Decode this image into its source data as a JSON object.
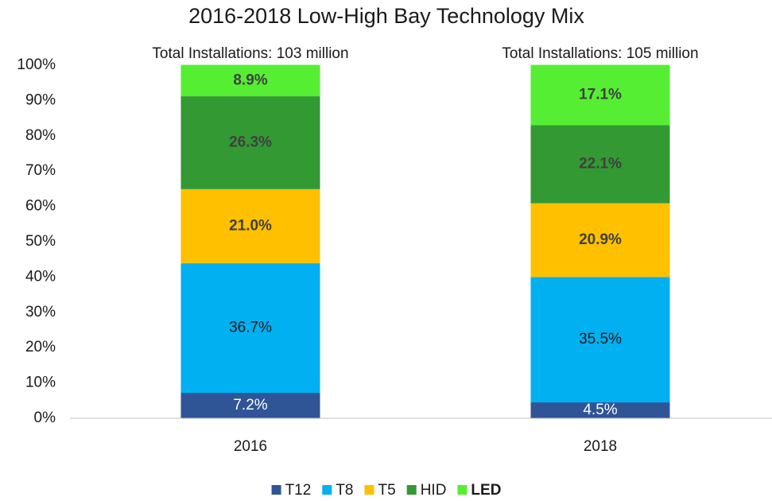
{
  "chart_data": {
    "type": "stacked_bar",
    "title": "2016-2018 Low-High Bay Technology Mix",
    "annotations": [
      "Total Installations: 103 million",
      "Total Installations: 105 million"
    ],
    "categories": [
      "2016",
      "2018"
    ],
    "series": [
      {
        "name": "T12",
        "color": "#2f5597",
        "label_color": "#ffffff",
        "label_bold": false,
        "values": [
          7.2,
          4.5
        ],
        "value_labels": [
          "7.2%",
          "4.5%"
        ]
      },
      {
        "name": "T8",
        "color": "#00b0f0",
        "label_color": "#1a1a1a",
        "label_bold": false,
        "values": [
          36.7,
          35.5
        ],
        "value_labels": [
          "36.7%",
          "35.5%"
        ]
      },
      {
        "name": "T5",
        "color": "#ffc000",
        "label_color": "#404040",
        "label_bold": true,
        "values": [
          21.0,
          20.9
        ],
        "value_labels": [
          "21.0%",
          "20.9%"
        ]
      },
      {
        "name": "HID",
        "color": "#339933",
        "label_color": "#404040",
        "label_bold": true,
        "values": [
          26.3,
          22.1
        ],
        "value_labels": [
          "26.3%",
          "22.1%"
        ]
      },
      {
        "name": "LED",
        "color": "#55ee33",
        "label_color": "#404040",
        "label_bold": true,
        "legend_bold": true,
        "values": [
          8.9,
          17.1
        ],
        "value_labels": [
          "8.9%",
          "17.1%"
        ]
      }
    ],
    "ylim": [
      0,
      100
    ],
    "yticks": [
      {
        "value": 0,
        "label": "0%"
      },
      {
        "value": 10,
        "label": "10%"
      },
      {
        "value": 20,
        "label": "20%"
      },
      {
        "value": 30,
        "label": "30%"
      },
      {
        "value": 40,
        "label": "40%"
      },
      {
        "value": 50,
        "label": "50%"
      },
      {
        "value": 60,
        "label": "60%"
      },
      {
        "value": 70,
        "label": "70%"
      },
      {
        "value": 80,
        "label": "80%"
      },
      {
        "value": 90,
        "label": "90%"
      },
      {
        "value": 100,
        "label": "100%"
      }
    ],
    "grid": false,
    "legend": "bottom"
  }
}
